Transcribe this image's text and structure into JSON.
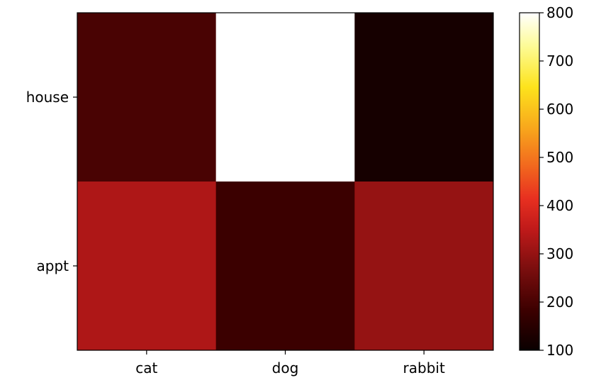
{
  "chart_data": {
    "type": "heatmap",
    "x_categories": [
      "cat",
      "dog",
      "rabbit"
    ],
    "y_categories": [
      "house",
      "appt"
    ],
    "values": [
      [
        200,
        800,
        120
      ],
      [
        330,
        180,
        300
      ]
    ],
    "colormap": "hot",
    "colorbar": {
      "min": 100,
      "max": 800,
      "ticks": [
        100,
        200,
        300,
        400,
        500,
        600,
        700,
        800
      ]
    },
    "title": "",
    "xlabel": "",
    "ylabel": "",
    "grid": false
  }
}
